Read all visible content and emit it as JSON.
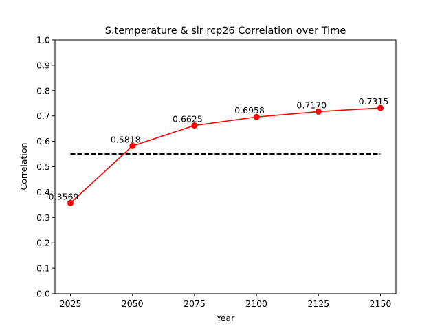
{
  "chart_data": {
    "type": "line",
    "title": "S.temperature & slr rcp26 Correlation over Time",
    "xlabel": "Year",
    "ylabel": "Correlation",
    "x": [
      2025,
      2050,
      2075,
      2100,
      2125,
      2150
    ],
    "x_ticks": [
      "2025",
      "2050",
      "2075",
      "2100",
      "2125",
      "2150"
    ],
    "y_ticks": [
      "0.0",
      "0.1",
      "0.2",
      "0.3",
      "0.4",
      "0.5",
      "0.6",
      "0.7",
      "0.8",
      "0.9",
      "1.0"
    ],
    "xlim": [
      2018.75,
      2156.25
    ],
    "ylim": [
      0.0,
      1.0
    ],
    "grid": false,
    "series": [
      {
        "values": [
          0.3569,
          0.5818,
          0.6625,
          0.6958,
          0.717,
          0.7315
        ],
        "labels": [
          "0.3569",
          "0.5818",
          "0.6625",
          "0.6958",
          "0.7170",
          "0.7315"
        ],
        "color": "#ff0000",
        "marker": "circle"
      }
    ],
    "reference_line": {
      "y": 0.55,
      "x_range": [
        2025,
        2150
      ],
      "style": "dashed",
      "color": "#000000"
    }
  }
}
